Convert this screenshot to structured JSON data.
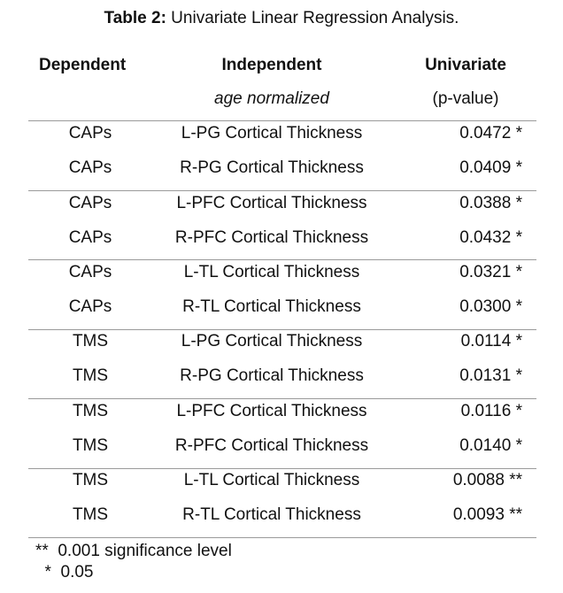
{
  "caption": {
    "label": "Table 2:",
    "text": " Univariate Linear Regression Analysis."
  },
  "headers": {
    "dependent": "Dependent",
    "independent": "Independent",
    "independent_sub": "age normalized",
    "univariate": "Univariate",
    "univariate_sub": "(p-value)"
  },
  "rows": [
    {
      "dep": "CAPs",
      "ind": "L-PG Cortical Thickness",
      "val": "0.0472 *"
    },
    {
      "dep": "CAPs",
      "ind": "R-PG Cortical Thickness",
      "val": "0.0409 *"
    },
    {
      "dep": "CAPs",
      "ind": "L-PFC Cortical Thickness",
      "val": "0.0388 *"
    },
    {
      "dep": "CAPs",
      "ind": "R-PFC Cortical Thickness",
      "val": "0.0432 *"
    },
    {
      "dep": "CAPs",
      "ind": "L-TL Cortical Thickness",
      "val": "0.0321 *"
    },
    {
      "dep": "CAPs",
      "ind": "R-TL Cortical Thickness",
      "val": "0.0300 *"
    },
    {
      "dep": "TMS",
      "ind": "L-PG Cortical Thickness",
      "val": "0.0114 *"
    },
    {
      "dep": "TMS",
      "ind": "R-PG Cortical Thickness",
      "val": "0.0131 *"
    },
    {
      "dep": "TMS",
      "ind": "L-PFC Cortical Thickness",
      "val": "0.0116 *"
    },
    {
      "dep": "TMS",
      "ind": "R-PFC Cortical Thickness",
      "val": "0.0140 *"
    },
    {
      "dep": "TMS",
      "ind": "L-TL Cortical Thickness",
      "val": "0.0088 **"
    },
    {
      "dep": "TMS",
      "ind": "R-TL Cortical Thickness",
      "val": "0.0093 **"
    }
  ],
  "footnotes": {
    "line1": "**  0.001 significance level",
    "line2": "  *  0.05"
  }
}
